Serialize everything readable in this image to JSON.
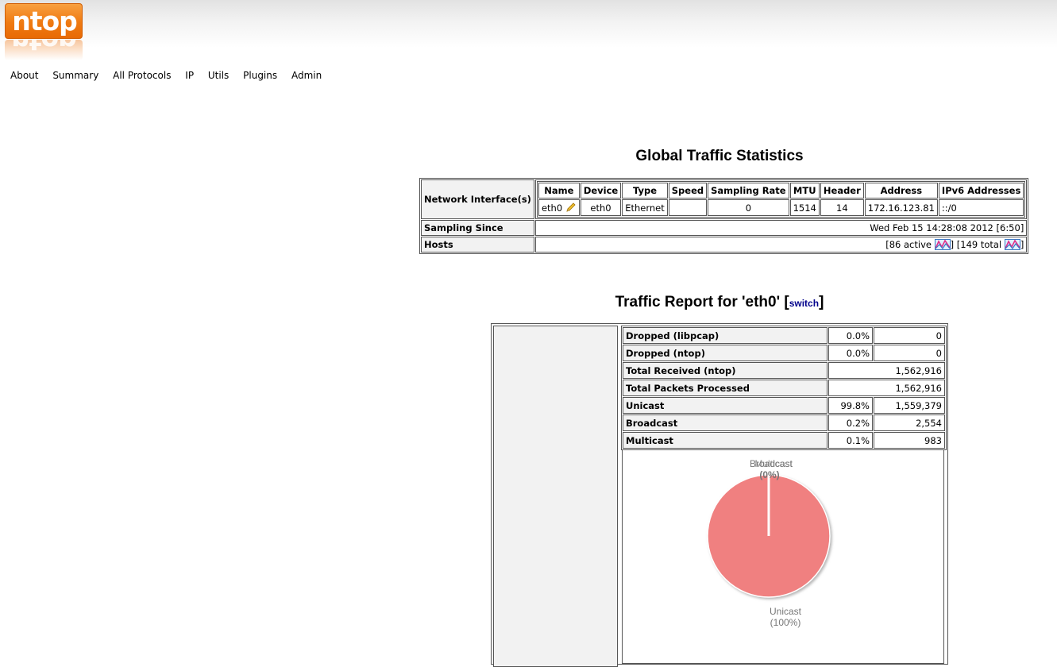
{
  "logo": {
    "text": "ntop"
  },
  "nav": [
    "About",
    "Summary",
    "All Protocols",
    "IP",
    "Utils",
    "Plugins",
    "Admin"
  ],
  "global": {
    "title": "Global Traffic Statistics",
    "interfaces_label": "Network Interface(s)",
    "columns": [
      "Name",
      "Device",
      "Type",
      "Speed",
      "Sampling Rate",
      "MTU",
      "Header",
      "Address",
      "IPv6 Addresses"
    ],
    "row": {
      "name": "eth0",
      "device": "eth0",
      "type": "Ethernet",
      "speed": "",
      "sampling_rate": "0",
      "mtu": "1514",
      "header": "14",
      "address": "172.16.123.81",
      "ipv6": "::/0"
    },
    "sampling_since_label": "Sampling Since",
    "sampling_since_value": "Wed Feb 15 14:28:08 2012 [6:50]",
    "hosts_label": "Hosts",
    "hosts_active": "[86 active",
    "hosts_total": "] [149 total",
    "hosts_end": "]"
  },
  "report": {
    "title": "Traffic Report for 'eth0'",
    "switch_open": "[",
    "switch_label": "switch",
    "switch_close": "]",
    "rows": [
      {
        "label": "Dropped (libpcap)",
        "pct": "0.0%",
        "value": "0"
      },
      {
        "label": "Dropped (ntop)",
        "pct": "0.0%",
        "value": "0"
      },
      {
        "label": "Total Received (ntop)",
        "pct": "",
        "value": "1,562,916"
      },
      {
        "label": "Total Packets Processed",
        "pct": "",
        "value": "1,562,916"
      },
      {
        "label": "Unicast",
        "pct": "99.8%",
        "value": "1,559,379"
      },
      {
        "label": "Broadcast",
        "pct": "0.2%",
        "value": "2,554"
      },
      {
        "label": "Multicast",
        "pct": "0.1%",
        "value": "983"
      }
    ]
  },
  "pie": {
    "colors": {
      "unicast": "#f08080",
      "outline": "#ffffff"
    },
    "labels": {
      "top_line1a": "Broadcast",
      "top_line1b": "Multicast",
      "top_line2": "(0%)",
      "unicast": "Unicast",
      "unicast_pct": "(100%)"
    }
  }
}
